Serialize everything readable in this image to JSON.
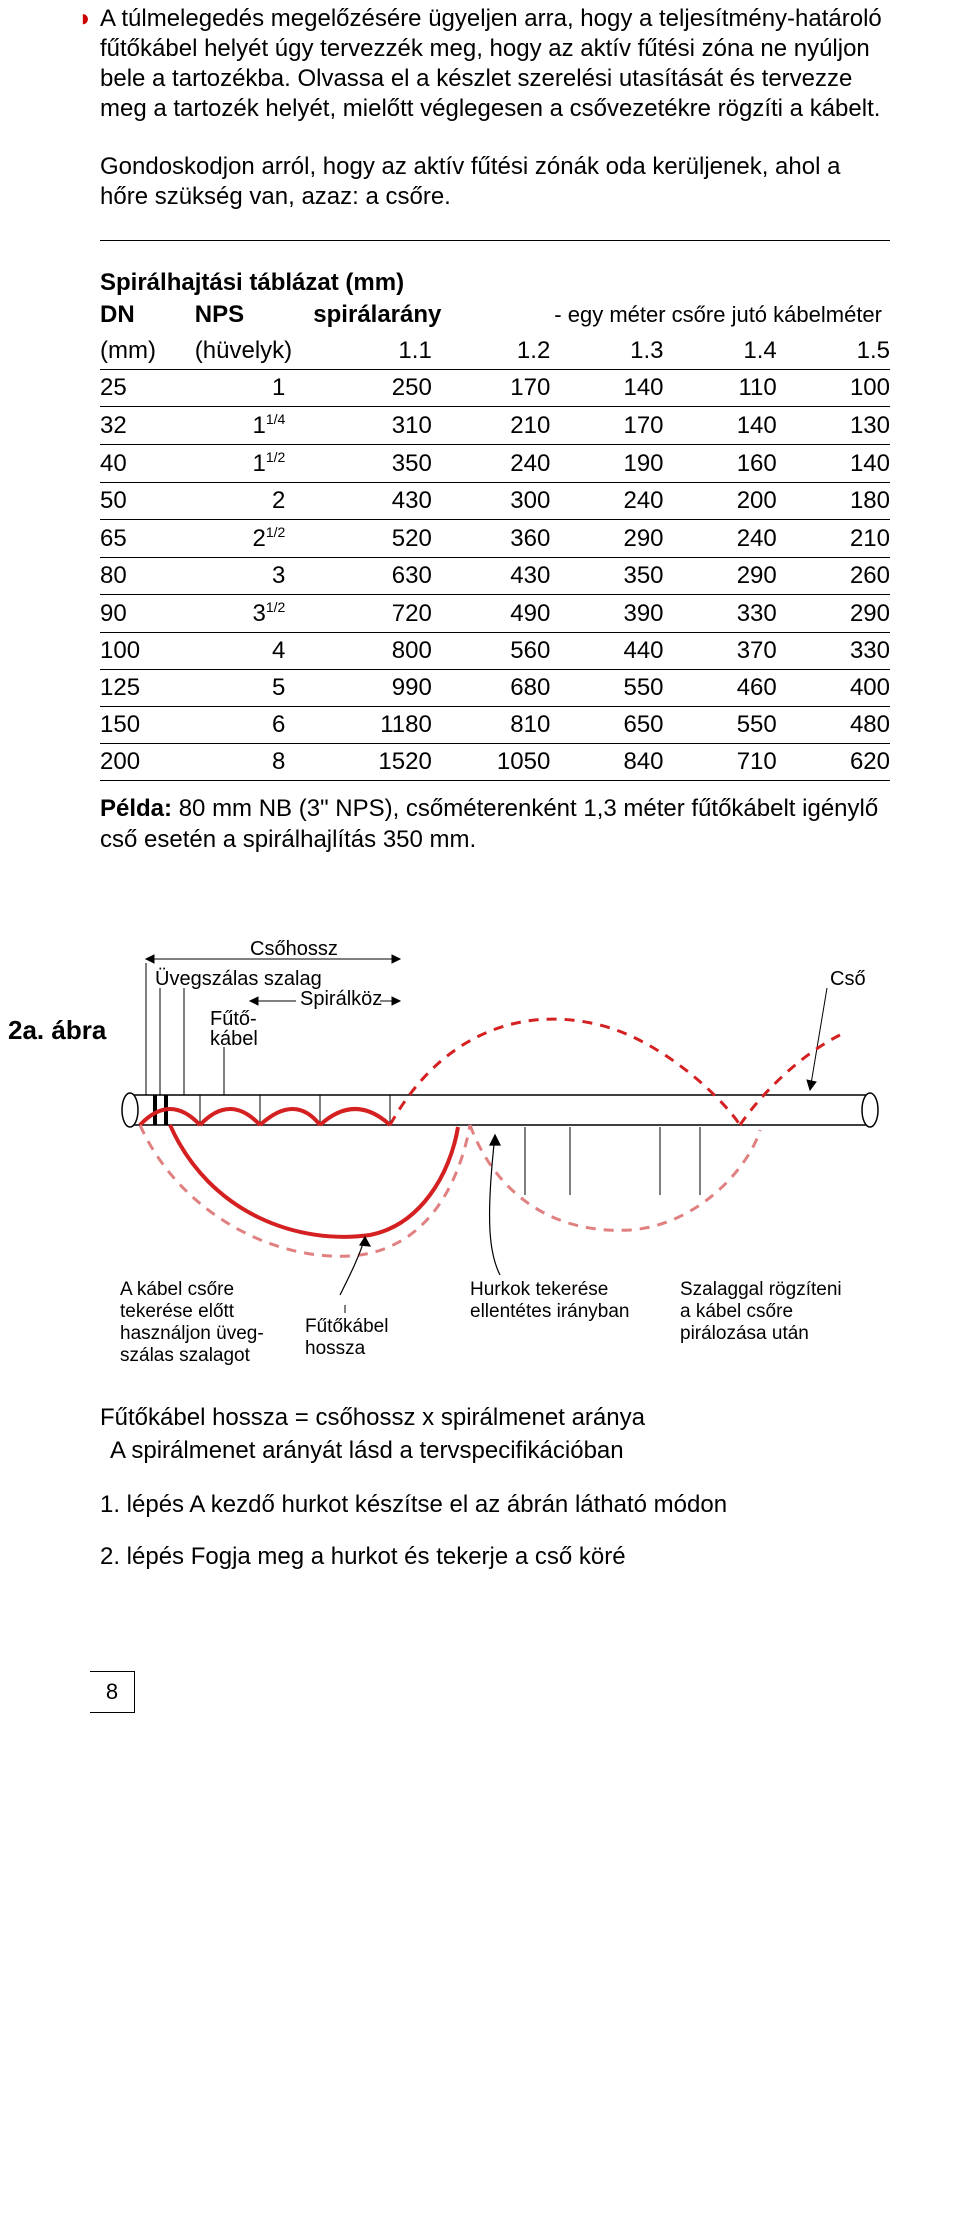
{
  "para1": "A túlmelegedés megelőzésére ügyeljen arra, hogy a teljesítmény-határoló fűtőkábel helyét úgy tervezzék meg, hogy az aktív fűtési zóna ne nyúljon bele a tartozékba. Olvassa el a készlet szerelési utasítását és tervezze meg a tartozék helyét, mielőtt véglegesen a csővezetékre rögzíti a kábelt.",
  "para2": "Gondoskodjon arról, hogy az aktív fűtési zónák oda kerüljenek, ahol a hőre szükség van, azaz: a csőre.",
  "table": {
    "title": "Spirálhajtási táblázat (mm)",
    "h1_dn": "DN",
    "h1_nps": "NPS",
    "h1_ratio": "spirálarány",
    "h1_note": "- egy méter csőre jutó kábelméter",
    "h2_mm": "(mm)",
    "h2_inch": "(hüvelyk)",
    "ratios": [
      "1.1",
      "1.2",
      "1.3",
      "1.4",
      "1.5"
    ],
    "rows": [
      {
        "dn": "25",
        "nps": "1",
        "v": [
          "250",
          "170",
          "140",
          "110",
          "100"
        ]
      },
      {
        "dn": "32",
        "nps": "1<sup>1/4</sup>",
        "v": [
          "310",
          "210",
          "170",
          "140",
          "130"
        ]
      },
      {
        "dn": "40",
        "nps": "1<sup>1/2</sup>",
        "v": [
          "350",
          "240",
          "190",
          "160",
          "140"
        ]
      },
      {
        "dn": "50",
        "nps": "2",
        "v": [
          "430",
          "300",
          "240",
          "200",
          "180"
        ]
      },
      {
        "dn": "65",
        "nps": "2<sup>1/2</sup>",
        "v": [
          "520",
          "360",
          "290",
          "240",
          "210"
        ]
      },
      {
        "dn": "80",
        "nps": "3",
        "v": [
          "630",
          "430",
          "350",
          "290",
          "260"
        ]
      },
      {
        "dn": "90",
        "nps": "3<sup>1/2</sup>",
        "v": [
          "720",
          "490",
          "390",
          "330",
          "290"
        ]
      },
      {
        "dn": "100",
        "nps": "4",
        "v": [
          "800",
          "560",
          "440",
          "370",
          "330"
        ]
      },
      {
        "dn": "125",
        "nps": "5",
        "v": [
          "990",
          "680",
          "550",
          "460",
          "400"
        ]
      },
      {
        "dn": "150",
        "nps": "6",
        "v": [
          "1180",
          "810",
          "650",
          "550",
          "480"
        ]
      },
      {
        "dn": "200",
        "nps": "8",
        "v": [
          "1520",
          "1050",
          "840",
          "710",
          "620"
        ]
      }
    ]
  },
  "example_label": "Példa:",
  "example_text": " 80 mm NB (3\" NPS), csőméterenként 1,3 méter fűtőkábelt igénylő cső esetén a spirálhajlítás 350 mm.",
  "figure": {
    "label": "2a. ábra",
    "pipe_len": "Csőhossz",
    "glass_tape": "Üvegszálas szalag",
    "pitch": "Spirálköz",
    "cable": "Fűtő-",
    "cable2": "kábel",
    "pipe": "Cső",
    "note_left1": "A kábel csőre",
    "note_left2": "tekerése előtt",
    "note_left3": "használjon üveg-",
    "note_left4": "szálas szalagot",
    "cable_len1": "Fűtőkábel",
    "cable_len2": "hossza",
    "note_mid1": "Hurkok tekerése",
    "note_mid2": "ellentétes irányban",
    "note_right1": "Szalaggal rögzíteni",
    "note_right2": "a kábel csőre",
    "note_right3": "pirálozása után",
    "colors": {
      "cable": "#d42020",
      "cable_dash": "#e08080"
    }
  },
  "formula1": "Fűtőkábel hossza = csőhossz x spirálmenet aránya",
  "formula2": "A spirálmenet arányát lásd a tervspecifikációban",
  "step1": "1. lépés  A kezdő hurkot készítse el az ábrán látható módon",
  "step2": "2. lépés  Fogja meg a hurkot és tekerje a cső köré",
  "page_number": "8"
}
